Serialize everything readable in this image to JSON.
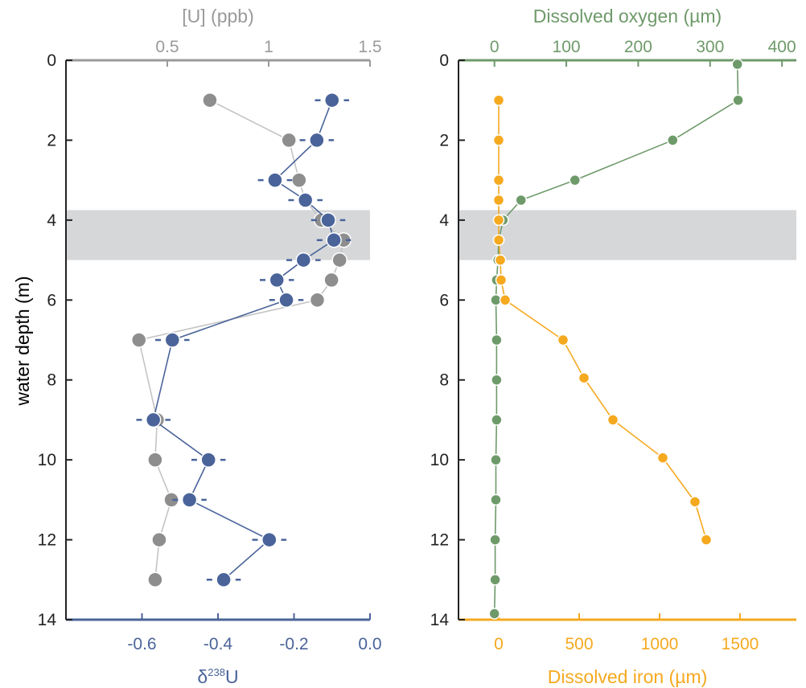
{
  "chart_data": [
    {
      "type": "scatter",
      "panel": "left",
      "ylabel": "water depth (m)",
      "ylim": [
        14,
        0
      ],
      "yticks": [
        0,
        2,
        4,
        6,
        8,
        10,
        12,
        14
      ],
      "top_axis": {
        "label": "[U] (ppb)",
        "color": "#9a9a9a",
        "range": [
          0.0,
          1.5
        ],
        "ticks": [
          0.5,
          1,
          1.5
        ],
        "tick_labels": [
          "0.5",
          "1",
          "1.5"
        ]
      },
      "bottom_axis": {
        "label_main": "δ",
        "label_sup": "238",
        "label_end": "U",
        "color": "#4a649a",
        "range": [
          -0.8,
          0.0
        ],
        "ticks": [
          -0.6,
          -0.4,
          -0.2,
          0.0
        ],
        "tick_labels": [
          "-0.6",
          "-0.4",
          "-0.2",
          "0.0"
        ]
      },
      "shaded_band": [
        3.75,
        5.0
      ],
      "series": [
        {
          "axis": "top",
          "color": "#8e8e8e",
          "line_color": "#c4c4c4",
          "points": [
            {
              "depth": 1.0,
              "value": 0.71
            },
            {
              "depth": 2.0,
              "value": 1.1
            },
            {
              "depth": 3.0,
              "value": 1.15
            },
            {
              "depth": 3.5,
              "value": 1.18
            },
            {
              "depth": 4.0,
              "value": 1.26
            },
            {
              "depth": 4.5,
              "value": 1.37
            },
            {
              "depth": 5.0,
              "value": 1.35
            },
            {
              "depth": 5.5,
              "value": 1.31
            },
            {
              "depth": 6.0,
              "value": 1.24
            },
            {
              "depth": 7.0,
              "value": 0.36
            },
            {
              "depth": 9.0,
              "value": 0.45
            },
            {
              "depth": 10.0,
              "value": 0.44
            },
            {
              "depth": 11.0,
              "value": 0.52
            },
            {
              "depth": 12.0,
              "value": 0.46
            },
            {
              "depth": 13.0,
              "value": 0.44
            }
          ]
        },
        {
          "axis": "bottom",
          "color": "#4a649a",
          "line_color": "#4a649a",
          "points": [
            {
              "depth": 1.0,
              "value": -0.1,
              "err": 0.045
            },
            {
              "depth": 2.0,
              "value": -0.14,
              "err": 0.045
            },
            {
              "depth": 3.0,
              "value": -0.25,
              "err": 0.045
            },
            {
              "depth": 3.5,
              "value": -0.17,
              "err": 0.045
            },
            {
              "depth": 4.0,
              "value": -0.11,
              "err": 0.045
            },
            {
              "depth": 4.5,
              "value": -0.095,
              "err": 0.045
            },
            {
              "depth": 5.0,
              "value": -0.175,
              "err": 0.045
            },
            {
              "depth": 5.5,
              "value": -0.245,
              "err": 0.045
            },
            {
              "depth": 6.0,
              "value": -0.22,
              "err": 0.045
            },
            {
              "depth": 7.0,
              "value": -0.52,
              "err": 0.045
            },
            {
              "depth": 9.0,
              "value": -0.57,
              "err": 0.045
            },
            {
              "depth": 10.0,
              "value": -0.425,
              "err": 0.045
            },
            {
              "depth": 11.0,
              "value": -0.475,
              "err": 0.045
            },
            {
              "depth": 12.0,
              "value": -0.265,
              "err": 0.045
            },
            {
              "depth": 13.0,
              "value": -0.385,
              "err": 0.045
            }
          ]
        }
      ]
    },
    {
      "type": "line",
      "panel": "right",
      "ylim": [
        14,
        0
      ],
      "yticks": [
        0,
        2,
        4,
        6,
        8,
        10,
        12,
        14
      ],
      "top_axis": {
        "label": "Dissolved oxygen (µm)",
        "color": "#6e9a6a",
        "range": [
          -50,
          420
        ],
        "ticks": [
          0,
          100,
          200,
          300,
          400
        ],
        "tick_labels": [
          "0",
          "100",
          "200",
          "300",
          "400"
        ]
      },
      "bottom_axis": {
        "label": "Dissolved iron (µm)",
        "color": "#f5a91f",
        "range": [
          -250,
          1850
        ],
        "ticks": [
          0,
          500,
          1000,
          1500
        ],
        "tick_labels": [
          "0",
          "500",
          "1000",
          "1500"
        ]
      },
      "shaded_band": [
        3.75,
        5.0
      ],
      "series": [
        {
          "axis": "top",
          "color": "#6e9a6a",
          "points": [
            {
              "depth": 0.1,
              "value": 338
            },
            {
              "depth": 1.0,
              "value": 339
            },
            {
              "depth": 2.0,
              "value": 248
            },
            {
              "depth": 3.0,
              "value": 112
            },
            {
              "depth": 3.5,
              "value": 37
            },
            {
              "depth": 4.0,
              "value": 12
            },
            {
              "depth": 4.5,
              "value": 6
            },
            {
              "depth": 5.0,
              "value": 5
            },
            {
              "depth": 5.5,
              "value": 3
            },
            {
              "depth": 6.0,
              "value": 2
            },
            {
              "depth": 7.0,
              "value": 3
            },
            {
              "depth": 8.0,
              "value": 3
            },
            {
              "depth": 9.0,
              "value": 3
            },
            {
              "depth": 10.0,
              "value": 2
            },
            {
              "depth": 11.0,
              "value": 2
            },
            {
              "depth": 12.0,
              "value": 1
            },
            {
              "depth": 13.0,
              "value": 1
            },
            {
              "depth": 13.85,
              "value": 0
            }
          ]
        },
        {
          "axis": "bottom",
          "color": "#f5a91f",
          "points": [
            {
              "depth": 1.0,
              "value": 0
            },
            {
              "depth": 2.0,
              "value": 0
            },
            {
              "depth": 3.0,
              "value": 0
            },
            {
              "depth": 3.5,
              "value": 0
            },
            {
              "depth": 4.0,
              "value": 0
            },
            {
              "depth": 4.5,
              "value": 0
            },
            {
              "depth": 5.0,
              "value": 10
            },
            {
              "depth": 5.5,
              "value": 15
            },
            {
              "depth": 6.0,
              "value": 40
            },
            {
              "depth": 7.0,
              "value": 400
            },
            {
              "depth": 7.95,
              "value": 530
            },
            {
              "depth": 9.0,
              "value": 710
            },
            {
              "depth": 9.95,
              "value": 1020
            },
            {
              "depth": 11.05,
              "value": 1220
            },
            {
              "depth": 12.0,
              "value": 1290
            }
          ]
        }
      ]
    }
  ]
}
